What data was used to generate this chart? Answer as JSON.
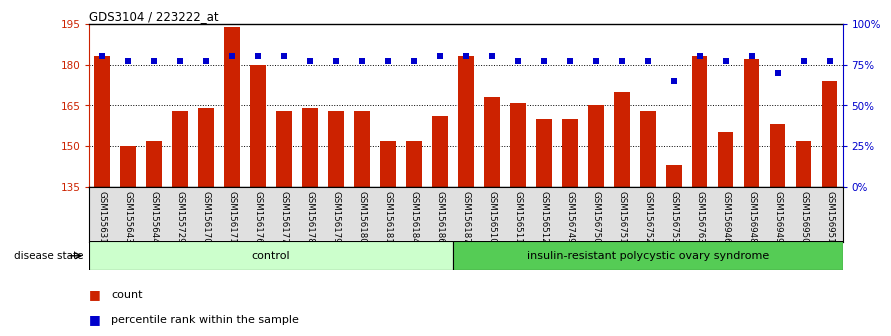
{
  "title": "GDS3104 / 223222_at",
  "samples": [
    "GSM155631",
    "GSM155643",
    "GSM155644",
    "GSM155729",
    "GSM156170",
    "GSM156171",
    "GSM156176",
    "GSM156177",
    "GSM156178",
    "GSM156179",
    "GSM156180",
    "GSM156181",
    "GSM156184",
    "GSM156186",
    "GSM156187",
    "GSM156510",
    "GSM156511",
    "GSM156512",
    "GSM156749",
    "GSM156750",
    "GSM156751",
    "GSM156752",
    "GSM156753",
    "GSM156763",
    "GSM156946",
    "GSM156948",
    "GSM156949",
    "GSM156950",
    "GSM156951"
  ],
  "bar_values": [
    183,
    150,
    152,
    163,
    164,
    194,
    180,
    163,
    164,
    163,
    163,
    152,
    152,
    161,
    183,
    168,
    166,
    160,
    160,
    165,
    170,
    163,
    143,
    183,
    155,
    182,
    158,
    152,
    174
  ],
  "percentile_values": [
    80,
    77,
    77,
    77,
    77,
    80,
    80,
    80,
    77,
    77,
    77,
    77,
    77,
    80,
    80,
    80,
    77,
    77,
    77,
    77,
    77,
    77,
    65,
    80,
    77,
    80,
    70,
    77,
    77
  ],
  "control_count": 14,
  "ylim_left": [
    135,
    195
  ],
  "ylim_right": [
    0,
    100
  ],
  "yticks_left": [
    135,
    150,
    165,
    180,
    195
  ],
  "yticks_right": [
    0,
    25,
    50,
    75,
    100
  ],
  "bar_color": "#CC2200",
  "dot_color": "#0000CC",
  "control_label": "control",
  "disease_label": "insulin-resistant polycystic ovary syndrome",
  "legend_bar_label": "count",
  "legend_dot_label": "percentile rank within the sample",
  "control_bg": "#CCFFCC",
  "disease_bg": "#55CC55",
  "bg_color": "#FFFFFF"
}
